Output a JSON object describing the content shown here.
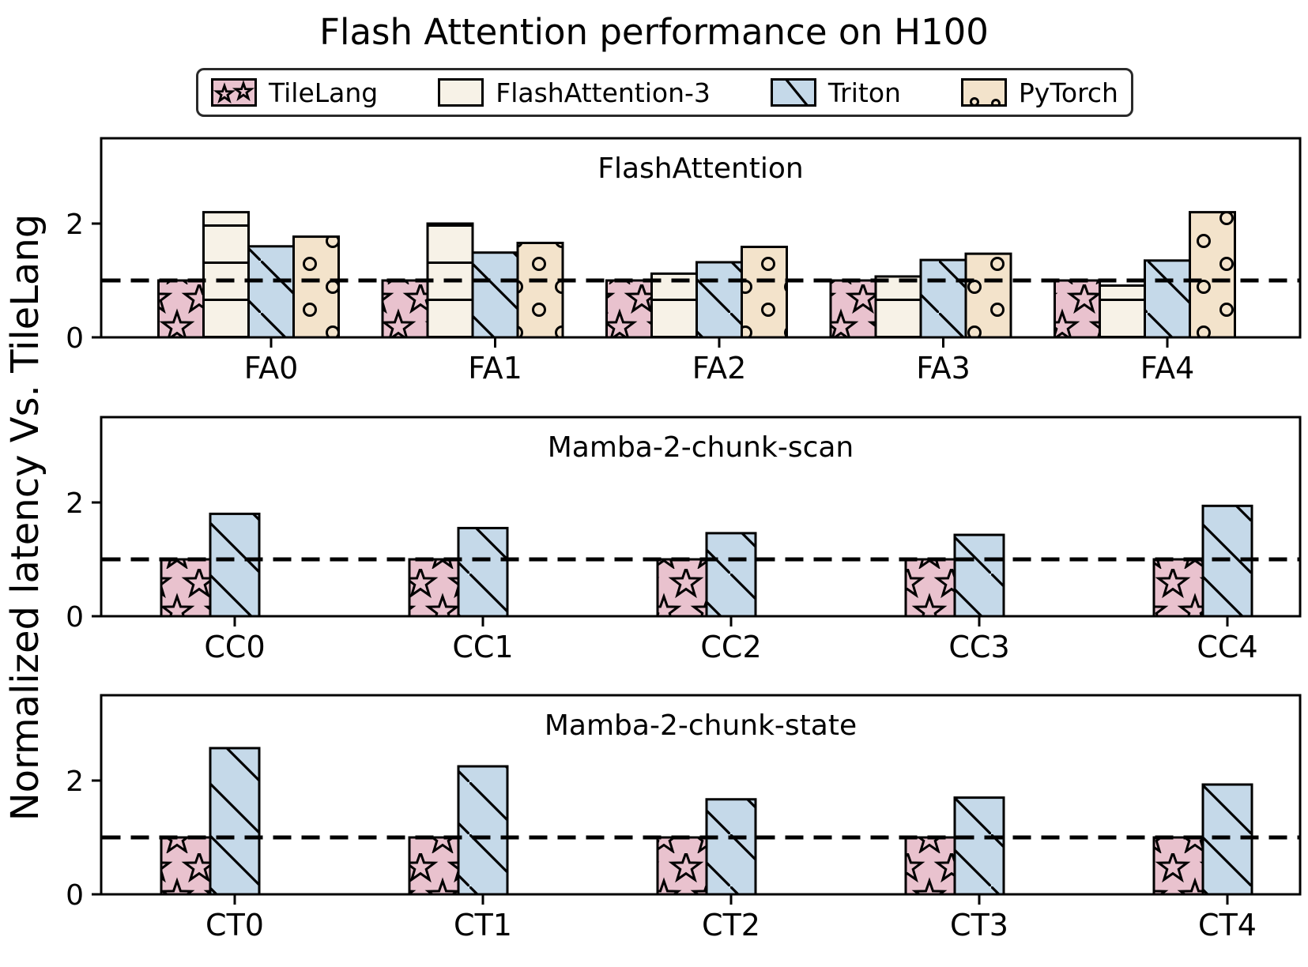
{
  "title": "Flash Attention performance on H100",
  "ylabel": "Normalized latency Vs. TileLang",
  "legend": {
    "items": [
      {
        "label": "TileLang",
        "color": "#e9c2ce",
        "hatch": "star"
      },
      {
        "label": "FlashAttention-3",
        "color": "#f7f2e7",
        "hatch": "hlines"
      },
      {
        "label": "Triton",
        "color": "#c5d9e9",
        "hatch": "diag"
      },
      {
        "label": "PyTorch",
        "color": "#f3e3cb",
        "hatch": "circles"
      }
    ]
  },
  "baseline": {
    "value": 1,
    "style": "dashed",
    "color": "#000000"
  },
  "axis": {
    "yticks": [
      0,
      2
    ],
    "ylim": [
      0,
      3.5
    ]
  },
  "chart_data": [
    {
      "type": "bar",
      "title": "FlashAttention",
      "categories": [
        "FA0",
        "FA1",
        "FA2",
        "FA3",
        "FA4"
      ],
      "series": [
        {
          "name": "TileLang",
          "values": [
            1.0,
            1.0,
            1.0,
            1.0,
            1.0
          ]
        },
        {
          "name": "FlashAttention-3",
          "values": [
            2.2,
            2.0,
            1.12,
            1.07,
            0.91
          ]
        },
        {
          "name": "Triton",
          "values": [
            1.6,
            1.49,
            1.32,
            1.36,
            1.35
          ]
        },
        {
          "name": "PyTorch",
          "values": [
            1.77,
            1.66,
            1.59,
            1.47,
            2.2
          ]
        }
      ],
      "ylim": [
        0,
        3.5
      ],
      "yticks": [
        0,
        2
      ],
      "grid": false
    },
    {
      "type": "bar",
      "title": "Mamba-2-chunk-scan",
      "categories": [
        "CC0",
        "CC1",
        "CC2",
        "CC3",
        "CC4"
      ],
      "series": [
        {
          "name": "TileLang",
          "values": [
            1.0,
            1.0,
            1.0,
            1.0,
            1.0
          ]
        },
        {
          "name": "Triton",
          "values": [
            1.8,
            1.55,
            1.46,
            1.43,
            1.94
          ]
        }
      ],
      "ylim": [
        0,
        3.5
      ],
      "yticks": [
        0,
        2
      ],
      "grid": false
    },
    {
      "type": "bar",
      "title": "Mamba-2-chunk-state",
      "categories": [
        "CT0",
        "CT1",
        "CT2",
        "CT3",
        "CT4"
      ],
      "series": [
        {
          "name": "TileLang",
          "values": [
            1.0,
            1.0,
            1.0,
            1.0,
            1.0
          ]
        },
        {
          "name": "Triton",
          "values": [
            2.57,
            2.25,
            1.67,
            1.7,
            1.93
          ]
        }
      ],
      "ylim": [
        0,
        3.5
      ],
      "yticks": [
        0,
        2
      ],
      "grid": false
    }
  ]
}
